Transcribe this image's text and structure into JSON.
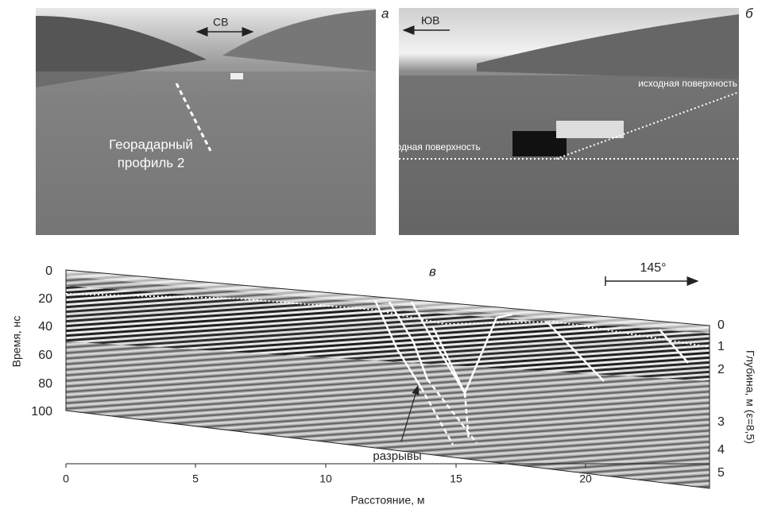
{
  "panels": [
    {
      "label": "а",
      "direction": "СВ",
      "caption": [
        "Георадарный",
        "профиль 2"
      ]
    },
    {
      "label": "б",
      "direction": "ЮВ",
      "annotations": [
        "исходная поверхность",
        "исходная поверхность"
      ]
    }
  ],
  "radargram": {
    "label": "в",
    "azimuth": "145°",
    "annotation": "разрывы",
    "x_axis": {
      "title": "Расстояние, м",
      "ticks": [
        0,
        5,
        10,
        15,
        20
      ]
    },
    "y_axis": {
      "title": "Время, нс",
      "ticks": [
        0,
        20,
        40,
        60,
        80,
        100
      ]
    },
    "y2_axis": {
      "title": "Глубина, м (ε=8,5)",
      "ticks": [
        0,
        1,
        2,
        3,
        4,
        5
      ]
    }
  }
}
